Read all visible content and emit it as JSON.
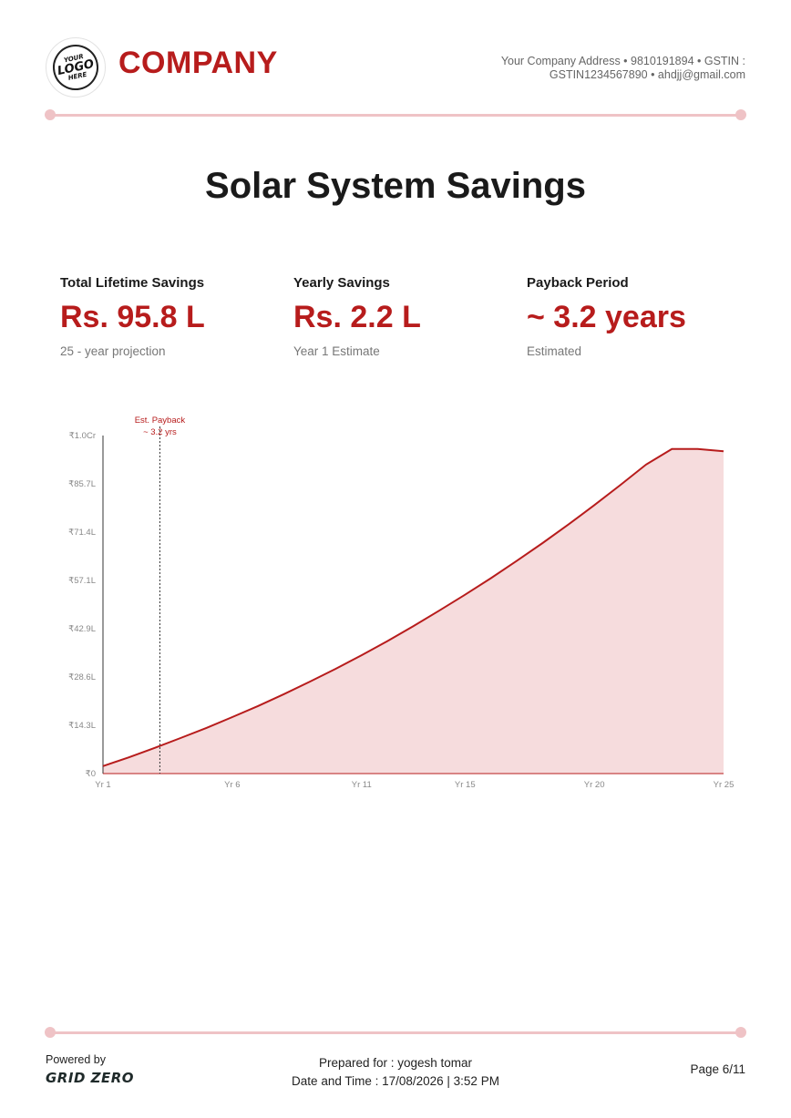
{
  "header": {
    "logo": {
      "line1": "YOUR",
      "line2": "LOGO",
      "line3": "HERE"
    },
    "company_name": "COMPANY",
    "address_line1": "Your Company Address • 9810191894 • GSTIN :",
    "address_line2": "GSTIN1234567890 • ahdjj@gmail.com"
  },
  "title": "Solar System Savings",
  "stats": [
    {
      "label": "Total Lifetime Savings",
      "value": "Rs. 95.8 L",
      "note": "25 - year projection"
    },
    {
      "label": "Yearly Savings",
      "value": "Rs. 2.2 L",
      "note": "Year 1 Estimate"
    },
    {
      "label": "Payback Period",
      "value": "~ 3.2 years",
      "note": "Estimated"
    }
  ],
  "colors": {
    "accent": "#b71c1c",
    "area_fill": "#f6dcdd",
    "rule": "#efc3c6"
  },
  "chart_data": {
    "type": "area",
    "title": "",
    "xlabel": "",
    "ylabel": "",
    "x": [
      1,
      2,
      3,
      4,
      5,
      6,
      7,
      8,
      9,
      10,
      11,
      12,
      13,
      14,
      15,
      16,
      17,
      18,
      19,
      20,
      21,
      22,
      23,
      24,
      25
    ],
    "series": [
      {
        "values": [
          2.2,
          4.8,
          7.6,
          10.5,
          13.5,
          16.7,
          20.0,
          23.5,
          27.2,
          31.0,
          35.0,
          39.2,
          43.6,
          48.2,
          52.9,
          57.8,
          62.9,
          68.2,
          73.7,
          79.4,
          85.3,
          91.4,
          97.7,
          104.2,
          95.8
        ]
      }
    ],
    "ylim": [
      0,
      100
    ],
    "ytick_values": [
      0,
      14.3,
      28.6,
      42.9,
      57.1,
      71.4,
      85.7,
      100
    ],
    "ytick_labels": [
      "₹0",
      "₹14.3L",
      "₹28.6L",
      "₹42.9L",
      "₹57.1L",
      "₹71.4L",
      "₹85.7L",
      "₹1.0Cr"
    ],
    "xtick_values": [
      1,
      6,
      11,
      15,
      20,
      25
    ],
    "xtick_labels": [
      "Yr 1",
      "Yr 6",
      "Yr 11",
      "Yr 15",
      "Yr 20",
      "Yr 25"
    ],
    "payback_x": 3.2,
    "annotation_line1": "Est. Payback",
    "annotation_line2": "~ 3.2 yrs",
    "grid": false,
    "legend": "none"
  },
  "footer": {
    "powered_by": "Powered by",
    "brand": "GRID ZERO",
    "prepared_for": "Prepared for : yogesh tomar",
    "date_time": "Date and Time : 17/08/2026 | 3:52 PM",
    "page": "Page 6/11"
  }
}
